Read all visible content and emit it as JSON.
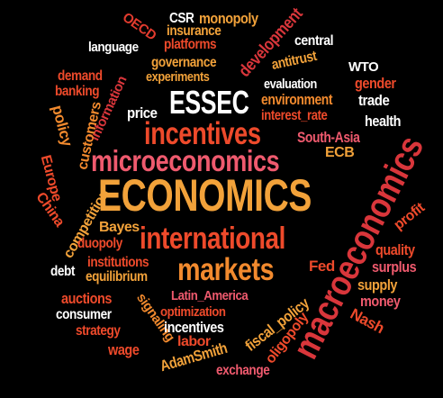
{
  "words": [
    {
      "text": "ECONOMICS",
      "color": "#f2a23a"
    },
    {
      "text": "macroeconomics",
      "color": "#d9363b"
    },
    {
      "text": "microeconomics",
      "color": "#ef5a6e"
    },
    {
      "text": "incentives",
      "color": "#ee4a2b"
    },
    {
      "text": "international",
      "color": "#ee4a2b"
    },
    {
      "text": "markets",
      "color": "#f28a2e"
    },
    {
      "text": "ESSEC",
      "color": "#ffffff"
    },
    {
      "text": "CSR",
      "color": "#ffffff"
    },
    {
      "text": "monopoly",
      "color": "#f2a23a"
    },
    {
      "text": "insurance",
      "color": "#f2a23a"
    },
    {
      "text": "OECD",
      "color": "#e23b2e"
    },
    {
      "text": "platforms",
      "color": "#ee4a2b"
    },
    {
      "text": "development",
      "color": "#d9363b"
    },
    {
      "text": "language",
      "color": "#ffffff"
    },
    {
      "text": "central",
      "color": "#ffffff"
    },
    {
      "text": "governance",
      "color": "#f2a23a"
    },
    {
      "text": "antitrust",
      "color": "#f2a23a"
    },
    {
      "text": "WTO",
      "color": "#ffffff"
    },
    {
      "text": "demand",
      "color": "#ee4a2b"
    },
    {
      "text": "experiments",
      "color": "#f2a23a"
    },
    {
      "text": "evaluation",
      "color": "#ffffff"
    },
    {
      "text": "gender",
      "color": "#ee4a2b"
    },
    {
      "text": "banking",
      "color": "#ee4a2b"
    },
    {
      "text": "information",
      "color": "#d9363b"
    },
    {
      "text": "environment",
      "color": "#f28a2e"
    },
    {
      "text": "trade",
      "color": "#ffffff"
    },
    {
      "text": "policy",
      "color": "#f28a2e"
    },
    {
      "text": "customers",
      "color": "#f28a2e"
    },
    {
      "text": "price",
      "color": "#ffffff"
    },
    {
      "text": "interest_rate",
      "color": "#ee4a2b"
    },
    {
      "text": "health",
      "color": "#ffffff"
    },
    {
      "text": "South-Asia",
      "color": "#ef5a6e"
    },
    {
      "text": "Europe",
      "color": "#ee4a2b"
    },
    {
      "text": "ECB",
      "color": "#f2a23a"
    },
    {
      "text": "China",
      "color": "#ee4a2b"
    },
    {
      "text": "competition",
      "color": "#f2a23a"
    },
    {
      "text": "Bayes",
      "color": "#f2a23a"
    },
    {
      "text": "profit",
      "color": "#ee4a2b"
    },
    {
      "text": "duopoly",
      "color": "#ee4a2b"
    },
    {
      "text": "quality",
      "color": "#ee4a2b"
    },
    {
      "text": "debt",
      "color": "#ffffff"
    },
    {
      "text": "institutions",
      "color": "#ee4a2b"
    },
    {
      "text": "Fed",
      "color": "#ee4a2b"
    },
    {
      "text": "surplus",
      "color": "#ef5a6e"
    },
    {
      "text": "equilibrium",
      "color": "#f2a23a"
    },
    {
      "text": "supply",
      "color": "#f2a23a"
    },
    {
      "text": "auctions",
      "color": "#ee4a2b"
    },
    {
      "text": "Latin_America",
      "color": "#ef5a6e"
    },
    {
      "text": "money",
      "color": "#ef5a6e"
    },
    {
      "text": "consumer",
      "color": "#ffffff"
    },
    {
      "text": "signaling",
      "color": "#f28a2e"
    },
    {
      "text": "optimization",
      "color": "#ee4a2b"
    },
    {
      "text": "fiscal_policy",
      "color": "#f2a23a"
    },
    {
      "text": "Nash",
      "color": "#ee4a2b"
    },
    {
      "text": "strategy",
      "color": "#ee4a2b"
    },
    {
      "text": "incentives",
      "color": "#ffffff"
    },
    {
      "text": "oligopoly",
      "color": "#ee4a2b"
    },
    {
      "text": "wage",
      "color": "#ee4a2b"
    },
    {
      "text": "labor",
      "color": "#ee4a2b"
    },
    {
      "text": "AdamSmith",
      "color": "#f2a23a"
    },
    {
      "text": "exchange",
      "color": "#ef5a6e"
    }
  ]
}
